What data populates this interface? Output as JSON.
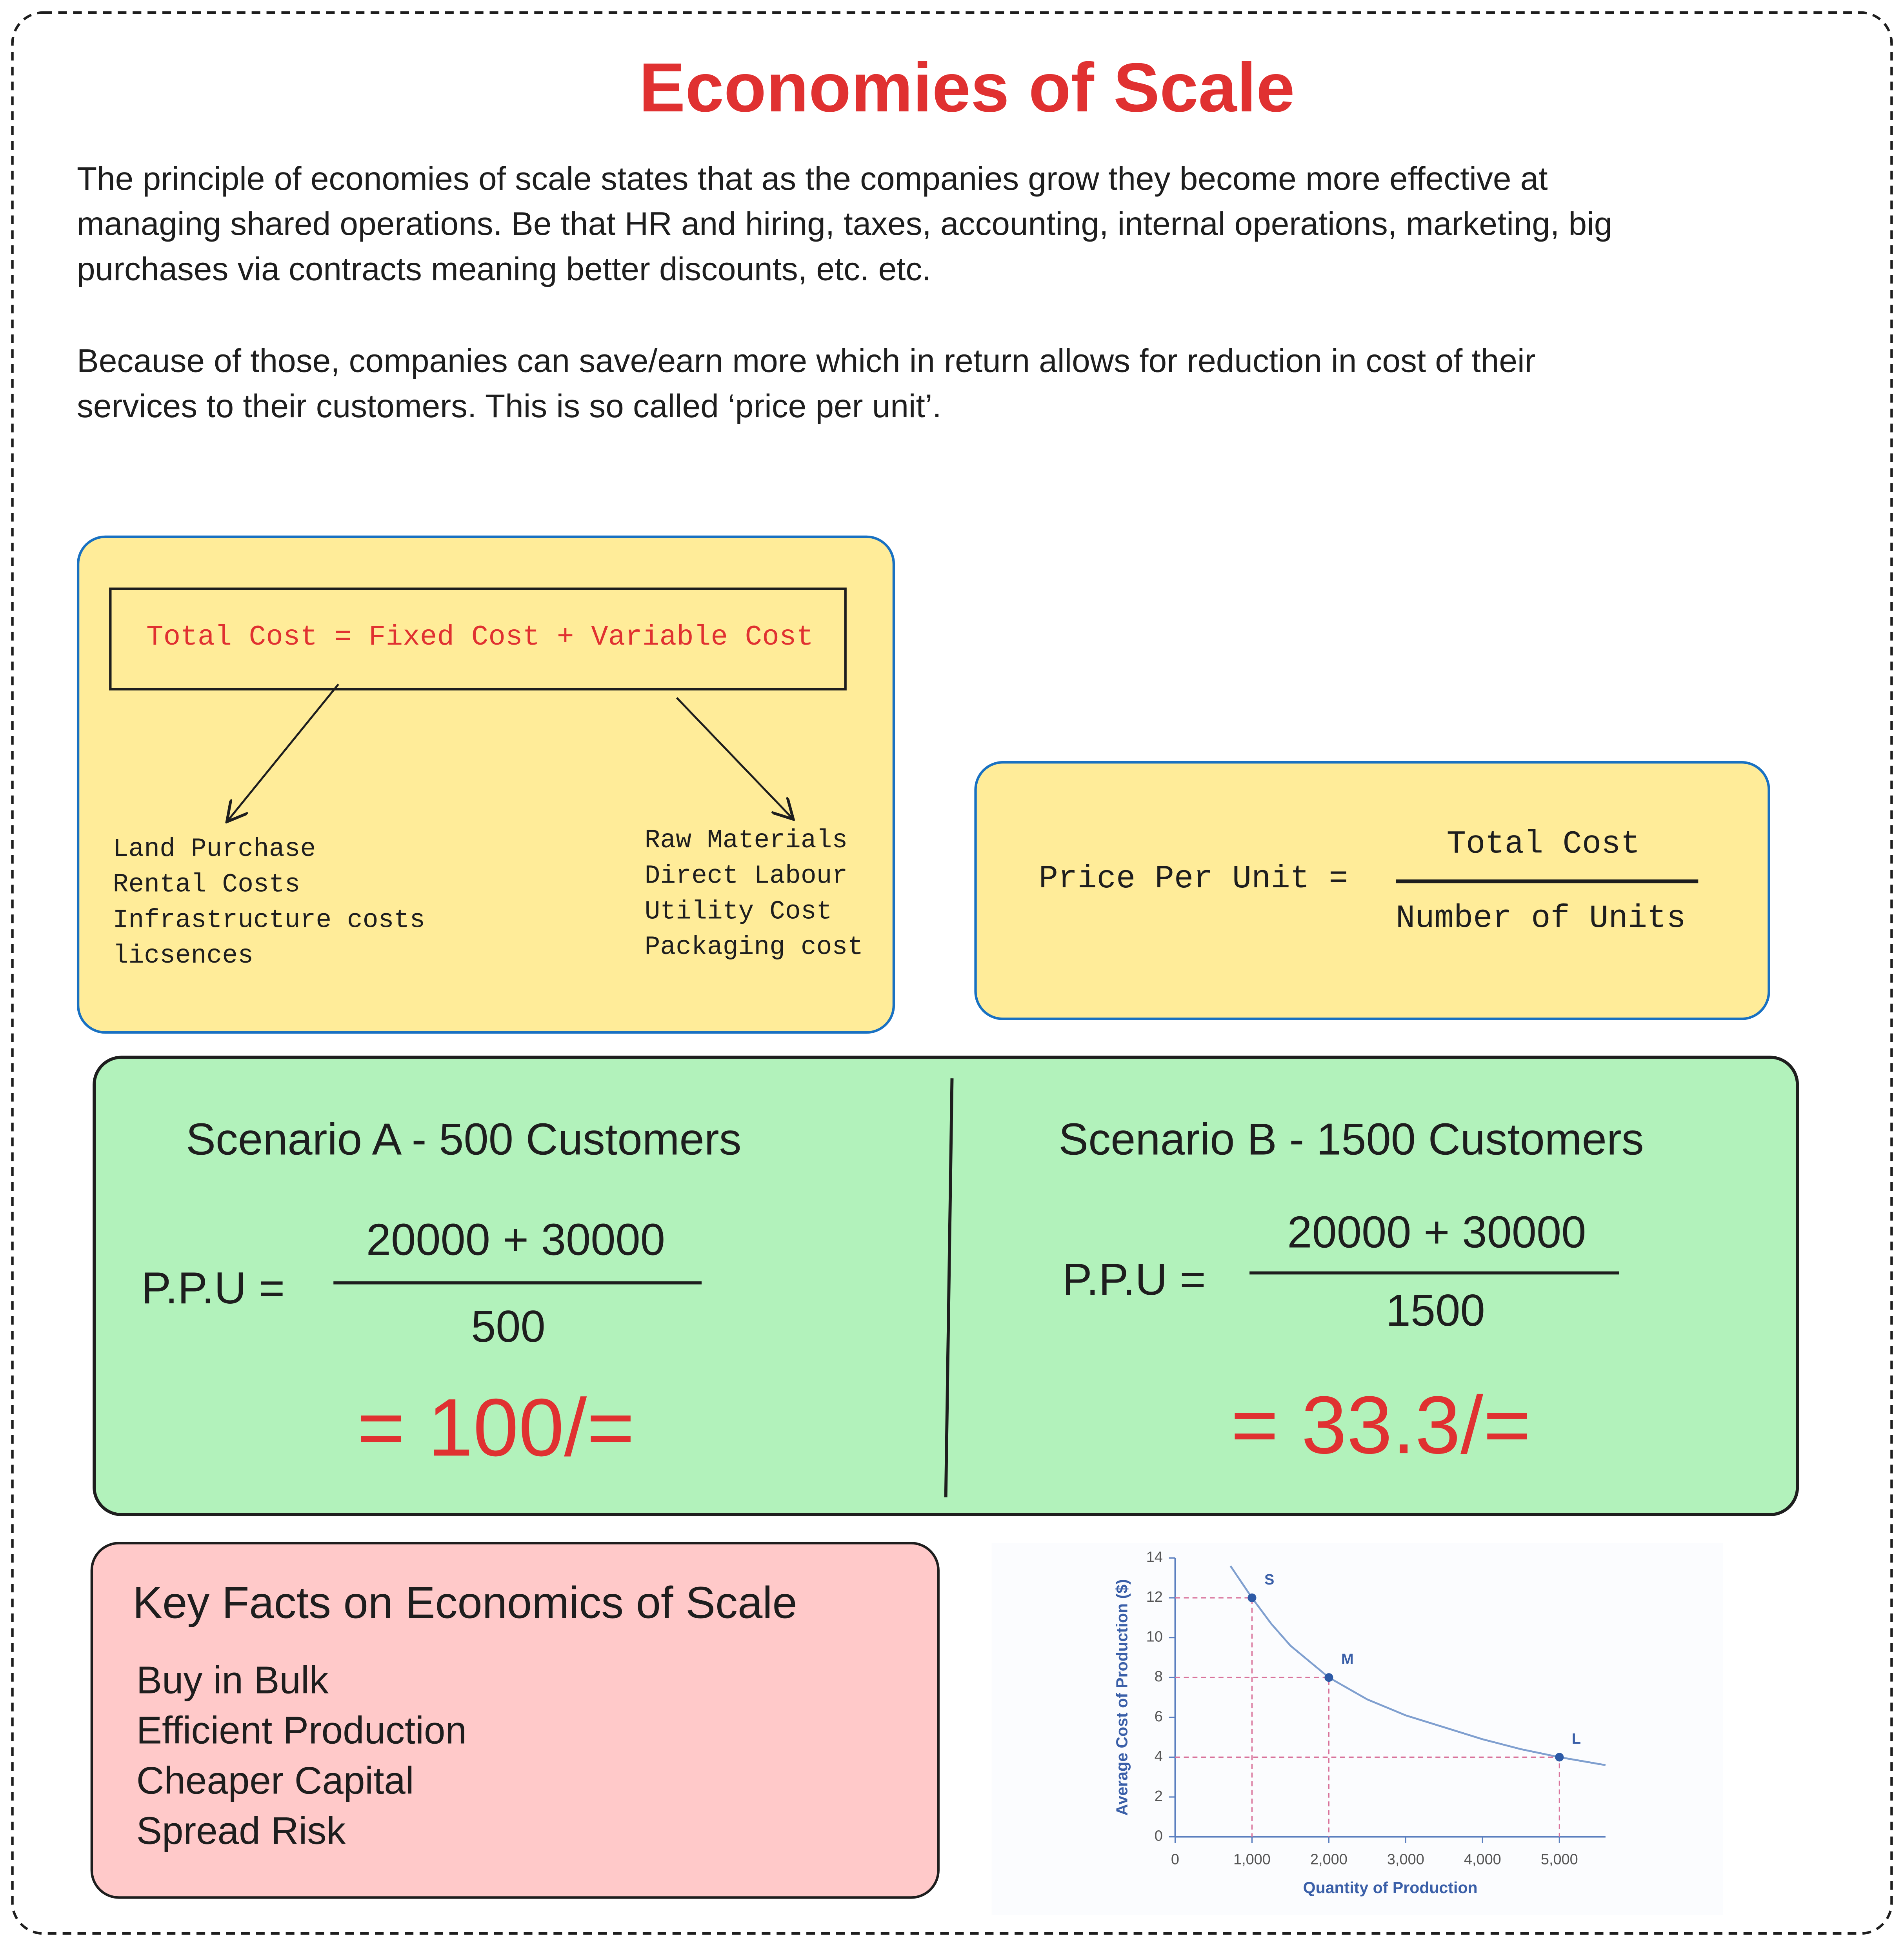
{
  "header": {
    "title": "Economies of Scale"
  },
  "intro": {
    "paragraphs": [
      [
        "The principle of economies of scale states that as the companies grow they become more effective at",
        "managing shared operations. Be that HR and hiring, taxes, accounting, internal operations, marketing, big",
        "purchases via contracts meaning better discounts, etc. etc."
      ],
      [
        "Because of those, companies can save/earn more which in return allows for reduction in cost of their",
        "services to their customers. This is so called ‘price per unit’."
      ]
    ]
  },
  "cost_box": {
    "formula": "Total Cost = Fixed Cost + Variable Cost",
    "fixed_items": [
      "Land Purchase",
      "Rental Costs",
      "Infrastructure costs",
      "licsences"
    ],
    "variable_items": [
      "Raw Materials",
      "Direct Labour",
      "Utility Cost",
      "Packaging cost"
    ]
  },
  "price_box": {
    "label": "Price Per Unit =",
    "numerator": "Total Cost",
    "denominator": "Number of Units"
  },
  "scenarios": [
    {
      "title": "Scenario A - 500 Customers",
      "label": "P.P.U =",
      "numerator": "20000 + 30000",
      "denominator": "500",
      "result": "= 100/="
    },
    {
      "title": "Scenario B - 1500 Customers",
      "label": "P.P.U =",
      "numerator": "20000 + 30000",
      "denominator": "1500",
      "result": "= 33.3/="
    }
  ],
  "key_facts": {
    "title": "Key Facts on Economics of Scale",
    "items": [
      "Buy in Bulk",
      "Efficient Production",
      "Cheaper Capital",
      "Spread Risk"
    ]
  },
  "chart_data": {
    "type": "line",
    "x_label": "Quantity of Production",
    "y_label": "Average Cost of Production ($)",
    "x": [
      720,
      1000,
      1250,
      1500,
      2000,
      2500,
      3000,
      3500,
      4000,
      4500,
      5000,
      5600
    ],
    "series": [
      {
        "color": "#7f9fcf",
        "values": [
          13.6,
          12,
          10.7,
          9.6,
          8,
          6.9,
          6.1,
          5.5,
          4.9,
          4.4,
          4,
          3.6
        ]
      }
    ],
    "points": {
      "x": [
        1000,
        2000,
        5000
      ],
      "values": [
        12,
        8,
        4
      ],
      "labels": [
        "S",
        "M",
        "L"
      ],
      "color": "#2d5aa6"
    },
    "xlim": [
      0,
      5600
    ],
    "ylim": [
      0,
      14
    ],
    "xticks": [
      0,
      {
        "value": 1000,
        "label": "1,000"
      },
      {
        "value": 2000,
        "label": "2,000"
      },
      {
        "value": 3000,
        "label": "3,000"
      },
      {
        "value": 4000,
        "label": "4,000"
      },
      {
        "value": 5000,
        "label": "5,000"
      }
    ],
    "yticks": [
      0,
      2,
      4,
      6,
      8,
      10,
      12,
      14
    ]
  }
}
